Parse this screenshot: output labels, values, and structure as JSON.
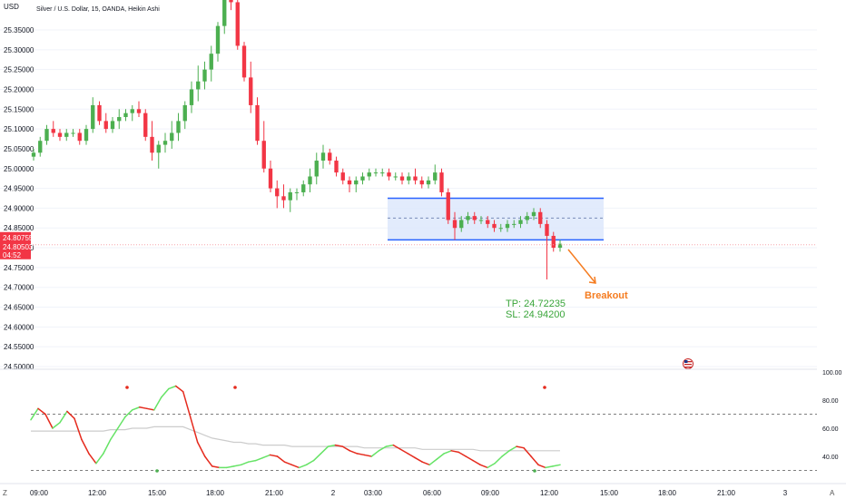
{
  "header": {
    "currency": "USD",
    "symbol_info": "Silver / U.S. Dollar, 15, OANDA, Heikin Ashi"
  },
  "price_axis": {
    "labels": [
      "25.35000",
      "25.30000",
      "25.25000",
      "25.20000",
      "25.15000",
      "25.10000",
      "25.05000",
      "25.00000",
      "24.95000",
      "24.90000",
      "24.85000",
      "24.80000",
      "24.75000",
      "24.70000",
      "24.65000",
      "24.60000",
      "24.55000",
      "24.50000"
    ],
    "last_price": "24.80755",
    "last_price_2": "24.80503",
    "countdown": "04:52"
  },
  "time_axis": {
    "labels": [
      "09:00",
      "12:00",
      "15:00",
      "18:00",
      "21:00",
      "2",
      "03:00",
      "06:00",
      "09:00",
      "12:00",
      "15:00",
      "18:00",
      "21:00",
      "3"
    ]
  },
  "indicator_axis": {
    "labels": [
      "100.00",
      "80.00",
      "60.00",
      "40.00"
    ],
    "upper_level": 70,
    "lower_level": 30
  },
  "annotations": {
    "tp": "TP: 24.72235",
    "sl": "SL:  24.94200",
    "breakout": "Breakout"
  },
  "colors": {
    "bull": "#26a69a",
    "bull_candle": "#4caf50",
    "bear_candle": "#f23645",
    "box_fill": "#dde7fb",
    "box_line": "#2962ff",
    "tp_color": "#3aa53a",
    "breakout_color": "#f57c20",
    "osc_up": "#66e366",
    "osc_down": "#e52b1e",
    "osc_ma": "#cccccc"
  },
  "icons": {
    "flag": "us-flag-icon",
    "corner_left": "Z",
    "corner_right": "A"
  },
  "chart_data": {
    "type": "candlestick",
    "candles": [
      {
        "o": 25.03,
        "h": 25.05,
        "l": 25.02,
        "c": 25.04
      },
      {
        "o": 25.04,
        "h": 25.08,
        "l": 25.03,
        "c": 25.07
      },
      {
        "o": 25.07,
        "h": 25.11,
        "l": 25.06,
        "c": 25.1
      },
      {
        "o": 25.1,
        "h": 25.12,
        "l": 25.08,
        "c": 25.09
      },
      {
        "o": 25.09,
        "h": 25.1,
        "l": 25.07,
        "c": 25.08
      },
      {
        "o": 25.08,
        "h": 25.1,
        "l": 25.07,
        "c": 25.09
      },
      {
        "o": 25.09,
        "h": 25.1,
        "l": 25.08,
        "c": 25.09
      },
      {
        "o": 25.09,
        "h": 25.1,
        "l": 25.06,
        "c": 25.07
      },
      {
        "o": 25.07,
        "h": 25.11,
        "l": 25.06,
        "c": 25.1
      },
      {
        "o": 25.1,
        "h": 25.18,
        "l": 25.09,
        "c": 25.16
      },
      {
        "o": 25.16,
        "h": 25.17,
        "l": 25.11,
        "c": 25.12
      },
      {
        "o": 25.12,
        "h": 25.14,
        "l": 25.09,
        "c": 25.1
      },
      {
        "o": 25.1,
        "h": 25.13,
        "l": 25.09,
        "c": 25.12
      },
      {
        "o": 25.12,
        "h": 25.15,
        "l": 25.1,
        "c": 25.13
      },
      {
        "o": 25.13,
        "h": 25.15,
        "l": 25.12,
        "c": 25.14
      },
      {
        "o": 25.14,
        "h": 25.16,
        "l": 25.12,
        "c": 25.15
      },
      {
        "o": 25.15,
        "h": 25.17,
        "l": 25.13,
        "c": 25.14
      },
      {
        "o": 25.14,
        "h": 25.15,
        "l": 25.07,
        "c": 25.08
      },
      {
        "o": 25.08,
        "h": 25.12,
        "l": 25.02,
        "c": 25.04
      },
      {
        "o": 25.04,
        "h": 25.07,
        "l": 25.0,
        "c": 25.06
      },
      {
        "o": 25.06,
        "h": 25.09,
        "l": 25.04,
        "c": 25.07
      },
      {
        "o": 25.07,
        "h": 25.12,
        "l": 25.05,
        "c": 25.09
      },
      {
        "o": 25.09,
        "h": 25.14,
        "l": 25.07,
        "c": 25.12
      },
      {
        "o": 25.12,
        "h": 25.17,
        "l": 25.1,
        "c": 25.16
      },
      {
        "o": 25.16,
        "h": 25.22,
        "l": 25.14,
        "c": 25.2
      },
      {
        "o": 25.2,
        "h": 25.26,
        "l": 25.17,
        "c": 25.22
      },
      {
        "o": 25.22,
        "h": 25.27,
        "l": 25.2,
        "c": 25.25
      },
      {
        "o": 25.25,
        "h": 25.31,
        "l": 25.22,
        "c": 25.29
      },
      {
        "o": 25.29,
        "h": 25.37,
        "l": 25.27,
        "c": 25.36
      },
      {
        "o": 25.36,
        "h": 25.45,
        "l": 25.34,
        "c": 25.43
      },
      {
        "o": 25.43,
        "h": 25.45,
        "l": 25.4,
        "c": 25.42
      },
      {
        "o": 25.42,
        "h": 25.45,
        "l": 25.3,
        "c": 25.31
      },
      {
        "o": 25.31,
        "h": 25.32,
        "l": 25.22,
        "c": 25.23
      },
      {
        "o": 25.23,
        "h": 25.27,
        "l": 25.14,
        "c": 25.16
      },
      {
        "o": 25.16,
        "h": 25.18,
        "l": 25.06,
        "c": 25.07
      },
      {
        "o": 25.07,
        "h": 25.12,
        "l": 24.99,
        "c": 25.0
      },
      {
        "o": 25.0,
        "h": 25.02,
        "l": 24.94,
        "c": 24.95
      },
      {
        "o": 24.95,
        "h": 24.97,
        "l": 24.9,
        "c": 24.93
      },
      {
        "o": 24.93,
        "h": 24.96,
        "l": 24.9,
        "c": 24.92
      },
      {
        "o": 24.92,
        "h": 24.95,
        "l": 24.89,
        "c": 24.94
      },
      {
        "o": 24.94,
        "h": 24.95,
        "l": 24.92,
        "c": 24.94
      },
      {
        "o": 24.94,
        "h": 24.97,
        "l": 24.93,
        "c": 24.96
      },
      {
        "o": 24.96,
        "h": 25.0,
        "l": 24.94,
        "c": 24.98
      },
      {
        "o": 24.98,
        "h": 25.04,
        "l": 24.96,
        "c": 25.02
      },
      {
        "o": 25.02,
        "h": 25.06,
        "l": 25.0,
        "c": 25.04
      },
      {
        "o": 25.04,
        "h": 25.05,
        "l": 25.01,
        "c": 25.02
      },
      {
        "o": 25.02,
        "h": 25.03,
        "l": 24.98,
        "c": 24.99
      },
      {
        "o": 24.99,
        "h": 25.0,
        "l": 24.96,
        "c": 24.97
      },
      {
        "o": 24.97,
        "h": 24.98,
        "l": 24.94,
        "c": 24.96
      },
      {
        "o": 24.96,
        "h": 24.98,
        "l": 24.94,
        "c": 24.97
      },
      {
        "o": 24.97,
        "h": 24.99,
        "l": 24.96,
        "c": 24.98
      },
      {
        "o": 24.98,
        "h": 25.0,
        "l": 24.97,
        "c": 24.99
      },
      {
        "o": 24.99,
        "h": 25.0,
        "l": 24.98,
        "c": 24.99
      },
      {
        "o": 24.99,
        "h": 25.0,
        "l": 24.98,
        "c": 24.99
      },
      {
        "o": 24.99,
        "h": 25.0,
        "l": 24.97,
        "c": 24.98
      },
      {
        "o": 24.98,
        "h": 24.99,
        "l": 24.97,
        "c": 24.98
      },
      {
        "o": 24.98,
        "h": 24.99,
        "l": 24.96,
        "c": 24.97
      },
      {
        "o": 24.97,
        "h": 24.99,
        "l": 24.96,
        "c": 24.98
      },
      {
        "o": 24.98,
        "h": 25.0,
        "l": 24.96,
        "c": 24.97
      },
      {
        "o": 24.97,
        "h": 24.98,
        "l": 24.95,
        "c": 24.96
      },
      {
        "o": 24.96,
        "h": 24.98,
        "l": 24.95,
        "c": 24.97
      },
      {
        "o": 24.97,
        "h": 25.01,
        "l": 24.96,
        "c": 24.99
      },
      {
        "o": 24.99,
        "h": 25.0,
        "l": 24.93,
        "c": 24.94
      },
      {
        "o": 24.94,
        "h": 24.95,
        "l": 24.86,
        "c": 24.87
      },
      {
        "o": 24.87,
        "h": 24.89,
        "l": 24.82,
        "c": 24.85
      },
      {
        "o": 24.85,
        "h": 24.88,
        "l": 24.84,
        "c": 24.87
      },
      {
        "o": 24.87,
        "h": 24.89,
        "l": 24.86,
        "c": 24.88
      },
      {
        "o": 24.88,
        "h": 24.89,
        "l": 24.86,
        "c": 24.87
      },
      {
        "o": 24.87,
        "h": 24.88,
        "l": 24.86,
        "c": 24.87
      },
      {
        "o": 24.87,
        "h": 24.88,
        "l": 24.85,
        "c": 24.86
      },
      {
        "o": 24.86,
        "h": 24.87,
        "l": 24.84,
        "c": 24.85
      },
      {
        "o": 24.85,
        "h": 24.86,
        "l": 24.84,
        "c": 24.85
      },
      {
        "o": 24.85,
        "h": 24.87,
        "l": 24.84,
        "c": 24.86
      },
      {
        "o": 24.86,
        "h": 24.87,
        "l": 24.85,
        "c": 24.86
      },
      {
        "o": 24.86,
        "h": 24.88,
        "l": 24.85,
        "c": 24.87
      },
      {
        "o": 24.87,
        "h": 24.89,
        "l": 24.86,
        "c": 24.88
      },
      {
        "o": 24.88,
        "h": 24.9,
        "l": 24.87,
        "c": 24.89
      },
      {
        "o": 24.89,
        "h": 24.9,
        "l": 24.85,
        "c": 24.86
      },
      {
        "o": 24.86,
        "h": 24.87,
        "l": 24.72,
        "c": 24.83
      },
      {
        "o": 24.83,
        "h": 24.84,
        "l": 24.79,
        "c": 24.8
      },
      {
        "o": 24.8,
        "h": 24.82,
        "l": 24.79,
        "c": 24.81
      }
    ],
    "oscillator": [
      66,
      74,
      70,
      60,
      64,
      72,
      67,
      52,
      42,
      35,
      42,
      52,
      60,
      68,
      73,
      75,
      74,
      73,
      82,
      88,
      90,
      86,
      68,
      50,
      40,
      33,
      32,
      32,
      33,
      34,
      36,
      37,
      39,
      41,
      40,
      36,
      34,
      32,
      34,
      37,
      42,
      47,
      48,
      47,
      44,
      42,
      41,
      40,
      44,
      47,
      48,
      45,
      42,
      39,
      36,
      34,
      38,
      42,
      44,
      43,
      40,
      37,
      34,
      32,
      35,
      40,
      44,
      47,
      46,
      40,
      34,
      32,
      33,
      34
    ],
    "oscillator_ma": [
      58,
      58,
      58,
      58,
      58,
      58,
      58,
      58,
      58,
      58,
      58,
      59,
      59,
      59,
      60,
      60,
      60,
      61,
      61,
      61,
      61,
      61,
      59,
      57,
      55,
      53,
      52,
      51,
      50,
      50,
      49,
      49,
      48,
      48,
      48,
      48,
      47,
      47,
      47,
      47,
      47,
      47,
      47,
      47,
      47,
      47,
      46,
      46,
      46,
      46,
      46,
      46,
      46,
      46,
      45,
      45,
      45,
      45,
      45,
      45,
      45,
      45,
      44,
      44,
      44,
      44,
      44,
      44,
      44,
      44,
      44,
      44,
      44,
      44
    ],
    "ylim": [
      24.49,
      25.41
    ],
    "osc_ylim": [
      20,
      100
    ],
    "range_box": {
      "top": 24.925,
      "bottom": 24.82,
      "mid": 24.875
    },
    "current_price": 24.80755
  }
}
